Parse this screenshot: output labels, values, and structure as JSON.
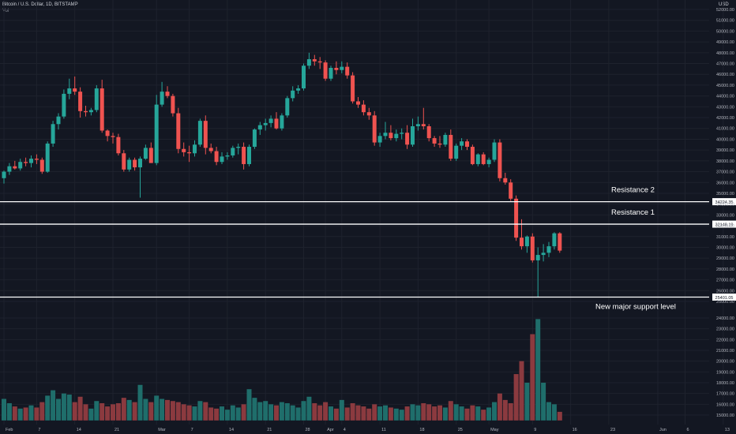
{
  "header": {
    "symbol_line": "Bitcoin / U.S. Dollar, 1D, BITSTAMP",
    "indicator": "Vol"
  },
  "colors": {
    "background": "#131722",
    "up": "#26a69a",
    "down": "#ef5350",
    "up_volume": "#1f6e6b",
    "down_volume": "#8b3a3f",
    "grid": "#1e222d",
    "axis_text": "#b2b5be",
    "level_line": "#ffffff"
  },
  "chart_data": {
    "type": "candlestick",
    "currency_label": "USD",
    "y_price_ticks": [
      "52000.00",
      "51000.00",
      "50000.00",
      "49000.00",
      "48000.00",
      "47000.00",
      "46000.00",
      "45000.00",
      "44000.00",
      "43000.00",
      "42000.00",
      "41000.00",
      "40000.00",
      "39000.00",
      "38000.00",
      "37000.00",
      "36000.00",
      "35000.00",
      "34000.00",
      "33000.00",
      "32000.00",
      "31000.00",
      "30000.00",
      "29000.00",
      "28000.00",
      "27000.00",
      "26000.00",
      "25000.00"
    ],
    "y_volume_ticks": [
      "24000.00",
      "23000.00",
      "22000.00",
      "21000.00",
      "20000.00",
      "19000.00",
      "18000.00",
      "17000.00",
      "16000.00",
      "15000.00"
    ],
    "x_labels": [
      {
        "label": "Feb",
        "day": 0
      },
      {
        "label": "7",
        "day": 6
      },
      {
        "label": "14",
        "day": 13
      },
      {
        "label": "21",
        "day": 20
      },
      {
        "label": "Mar",
        "day": 28
      },
      {
        "label": "7",
        "day": 34
      },
      {
        "label": "14",
        "day": 41
      },
      {
        "label": "21",
        "day": 48
      },
      {
        "label": "28",
        "day": 55
      },
      {
        "label": "Apr",
        "day": 59
      },
      {
        "label": "4",
        "day": 62
      },
      {
        "label": "11",
        "day": 69
      },
      {
        "label": "18",
        "day": 76
      },
      {
        "label": "25",
        "day": 83
      },
      {
        "label": "May",
        "day": 89
      },
      {
        "label": "9",
        "day": 97
      },
      {
        "label": "16",
        "day": 104
      },
      {
        "label": "23",
        "day": 111
      },
      {
        "label": "Jun",
        "day": 120
      },
      {
        "label": "6",
        "day": 125
      },
      {
        "label": "13",
        "day": 132
      }
    ],
    "horizontal_levels": [
      {
        "name": "Resistance 2",
        "price": 34224.35,
        "tag": "34224.35"
      },
      {
        "name": "Resistance 1",
        "price": 32148.19,
        "tag": "32148.19"
      },
      {
        "name": "New major support level",
        "price": 25401.05,
        "tag": "25401.05"
      }
    ],
    "candles": [
      {
        "o": 36400,
        "h": 37100,
        "l": 35900,
        "c": 37000,
        "v": 16500
      },
      {
        "o": 37000,
        "h": 37800,
        "l": 36700,
        "c": 37500,
        "v": 16100
      },
      {
        "o": 37500,
        "h": 38000,
        "l": 37200,
        "c": 37300,
        "v": 15800
      },
      {
        "o": 37300,
        "h": 38200,
        "l": 37100,
        "c": 37900,
        "v": 15600
      },
      {
        "o": 37900,
        "h": 38300,
        "l": 37500,
        "c": 37800,
        "v": 15700
      },
      {
        "o": 37800,
        "h": 38500,
        "l": 37400,
        "c": 38200,
        "v": 15900
      },
      {
        "o": 38200,
        "h": 38600,
        "l": 37700,
        "c": 38100,
        "v": 15700
      },
      {
        "o": 38100,
        "h": 38300,
        "l": 36800,
        "c": 37000,
        "v": 16200
      },
      {
        "o": 37000,
        "h": 39800,
        "l": 36900,
        "c": 39600,
        "v": 16800
      },
      {
        "o": 39600,
        "h": 41700,
        "l": 39300,
        "c": 41400,
        "v": 17300
      },
      {
        "o": 41400,
        "h": 42400,
        "l": 40900,
        "c": 42100,
        "v": 16500
      },
      {
        "o": 42100,
        "h": 44600,
        "l": 41900,
        "c": 44200,
        "v": 17000
      },
      {
        "o": 44200,
        "h": 45600,
        "l": 43700,
        "c": 44700,
        "v": 16900
      },
      {
        "o": 44700,
        "h": 45800,
        "l": 44100,
        "c": 44400,
        "v": 16200
      },
      {
        "o": 44400,
        "h": 44800,
        "l": 42000,
        "c": 42600,
        "v": 16700
      },
      {
        "o": 42600,
        "h": 43100,
        "l": 42100,
        "c": 42500,
        "v": 16000
      },
      {
        "o": 42500,
        "h": 42900,
        "l": 42200,
        "c": 42700,
        "v": 15600
      },
      {
        "o": 42700,
        "h": 45000,
        "l": 42500,
        "c": 44700,
        "v": 16300
      },
      {
        "o": 44700,
        "h": 45500,
        "l": 40600,
        "c": 40800,
        "v": 16100
      },
      {
        "o": 40800,
        "h": 40900,
        "l": 39800,
        "c": 40300,
        "v": 15800
      },
      {
        "o": 40300,
        "h": 40600,
        "l": 39600,
        "c": 40200,
        "v": 16000
      },
      {
        "o": 40200,
        "h": 40500,
        "l": 38500,
        "c": 38700,
        "v": 16100
      },
      {
        "o": 38700,
        "h": 39000,
        "l": 37000,
        "c": 37200,
        "v": 16600
      },
      {
        "o": 37200,
        "h": 38300,
        "l": 37000,
        "c": 38100,
        "v": 16400
      },
      {
        "o": 38100,
        "h": 38300,
        "l": 37100,
        "c": 37400,
        "v": 16200
      },
      {
        "o": 37400,
        "h": 38400,
        "l": 34600,
        "c": 38200,
        "v": 17800
      },
      {
        "o": 38200,
        "h": 39500,
        "l": 38100,
        "c": 39200,
        "v": 16500
      },
      {
        "o": 39200,
        "h": 39700,
        "l": 37800,
        "c": 37800,
        "v": 16200
      },
      {
        "o": 37800,
        "h": 44100,
        "l": 37600,
        "c": 43200,
        "v": 16800
      },
      {
        "o": 43200,
        "h": 45300,
        "l": 43000,
        "c": 44400,
        "v": 16500
      },
      {
        "o": 44400,
        "h": 44900,
        "l": 43800,
        "c": 44000,
        "v": 16400
      },
      {
        "o": 44000,
        "h": 44200,
        "l": 42100,
        "c": 42400,
        "v": 16300
      },
      {
        "o": 42400,
        "h": 42900,
        "l": 38700,
        "c": 39100,
        "v": 16200
      },
      {
        "o": 39100,
        "h": 39700,
        "l": 38400,
        "c": 38800,
        "v": 16000
      },
      {
        "o": 38800,
        "h": 39400,
        "l": 37900,
        "c": 38700,
        "v": 15900
      },
      {
        "o": 38700,
        "h": 39900,
        "l": 38400,
        "c": 39500,
        "v": 15800
      },
      {
        "o": 39500,
        "h": 41900,
        "l": 39300,
        "c": 41700,
        "v": 16300
      },
      {
        "o": 41700,
        "h": 42200,
        "l": 38600,
        "c": 39200,
        "v": 16200
      },
      {
        "o": 39200,
        "h": 39600,
        "l": 38700,
        "c": 38900,
        "v": 15700
      },
      {
        "o": 38900,
        "h": 39300,
        "l": 37600,
        "c": 37900,
        "v": 15600
      },
      {
        "o": 37900,
        "h": 38800,
        "l": 37700,
        "c": 38400,
        "v": 15800
      },
      {
        "o": 38400,
        "h": 38800,
        "l": 38100,
        "c": 38500,
        "v": 15500
      },
      {
        "o": 38500,
        "h": 39400,
        "l": 38300,
        "c": 39200,
        "v": 15900
      },
      {
        "o": 39200,
        "h": 39600,
        "l": 38600,
        "c": 39300,
        "v": 15700
      },
      {
        "o": 39300,
        "h": 39700,
        "l": 37200,
        "c": 37700,
        "v": 16000
      },
      {
        "o": 37700,
        "h": 39500,
        "l": 37500,
        "c": 39300,
        "v": 17400
      },
      {
        "o": 39300,
        "h": 41000,
        "l": 39100,
        "c": 40900,
        "v": 16600
      },
      {
        "o": 40900,
        "h": 41600,
        "l": 40400,
        "c": 41300,
        "v": 16200
      },
      {
        "o": 41300,
        "h": 41900,
        "l": 40800,
        "c": 41500,
        "v": 16300
      },
      {
        "o": 41500,
        "h": 42200,
        "l": 41100,
        "c": 41900,
        "v": 16000
      },
      {
        "o": 41900,
        "h": 42500,
        "l": 40900,
        "c": 41000,
        "v": 15900
      },
      {
        "o": 41000,
        "h": 42400,
        "l": 40800,
        "c": 42200,
        "v": 16200
      },
      {
        "o": 42200,
        "h": 44000,
        "l": 42000,
        "c": 43800,
        "v": 16100
      },
      {
        "o": 43800,
        "h": 44900,
        "l": 43500,
        "c": 44500,
        "v": 15900
      },
      {
        "o": 44500,
        "h": 45000,
        "l": 44200,
        "c": 44700,
        "v": 15700
      },
      {
        "o": 44700,
        "h": 47000,
        "l": 44500,
        "c": 46800,
        "v": 16300
      },
      {
        "o": 46800,
        "h": 48000,
        "l": 46500,
        "c": 47400,
        "v": 16700
      },
      {
        "o": 47400,
        "h": 47800,
        "l": 46800,
        "c": 47200,
        "v": 16100
      },
      {
        "o": 47200,
        "h": 47600,
        "l": 46500,
        "c": 47100,
        "v": 15900
      },
      {
        "o": 47100,
        "h": 47300,
        "l": 45400,
        "c": 45600,
        "v": 16200
      },
      {
        "o": 45600,
        "h": 46800,
        "l": 45400,
        "c": 46600,
        "v": 15800
      },
      {
        "o": 46600,
        "h": 47200,
        "l": 46000,
        "c": 46400,
        "v": 15600
      },
      {
        "o": 46400,
        "h": 47200,
        "l": 46100,
        "c": 46700,
        "v": 16400
      },
      {
        "o": 46700,
        "h": 47100,
        "l": 45600,
        "c": 45900,
        "v": 15700
      },
      {
        "o": 45900,
        "h": 46200,
        "l": 43300,
        "c": 43500,
        "v": 16100
      },
      {
        "o": 43500,
        "h": 43900,
        "l": 42900,
        "c": 43200,
        "v": 15900
      },
      {
        "o": 43200,
        "h": 43600,
        "l": 42200,
        "c": 42500,
        "v": 15800
      },
      {
        "o": 42500,
        "h": 42900,
        "l": 41800,
        "c": 42200,
        "v": 15600
      },
      {
        "o": 42200,
        "h": 42600,
        "l": 39400,
        "c": 39700,
        "v": 16000
      },
      {
        "o": 39700,
        "h": 40600,
        "l": 39300,
        "c": 40300,
        "v": 15800
      },
      {
        "o": 40300,
        "h": 41600,
        "l": 40000,
        "c": 40600,
        "v": 15900
      },
      {
        "o": 40600,
        "h": 41300,
        "l": 39900,
        "c": 40100,
        "v": 15700
      },
      {
        "o": 40100,
        "h": 40900,
        "l": 39800,
        "c": 40500,
        "v": 15600
      },
      {
        "o": 40500,
        "h": 41000,
        "l": 40000,
        "c": 40600,
        "v": 15500
      },
      {
        "o": 40600,
        "h": 41300,
        "l": 39100,
        "c": 39500,
        "v": 15800
      },
      {
        "o": 39500,
        "h": 41900,
        "l": 39300,
        "c": 41200,
        "v": 16000
      },
      {
        "o": 41200,
        "h": 42100,
        "l": 40800,
        "c": 41400,
        "v": 15900
      },
      {
        "o": 41400,
        "h": 42900,
        "l": 40900,
        "c": 41200,
        "v": 16100
      },
      {
        "o": 41200,
        "h": 41400,
        "l": 39800,
        "c": 40100,
        "v": 16000
      },
      {
        "o": 40100,
        "h": 40300,
        "l": 39300,
        "c": 39600,
        "v": 15800
      },
      {
        "o": 39600,
        "h": 40300,
        "l": 39200,
        "c": 39500,
        "v": 15900
      },
      {
        "o": 39500,
        "h": 40600,
        "l": 39300,
        "c": 40400,
        "v": 15700
      },
      {
        "o": 40400,
        "h": 40900,
        "l": 38000,
        "c": 38200,
        "v": 16300
      },
      {
        "o": 38200,
        "h": 39600,
        "l": 38000,
        "c": 39400,
        "v": 16000
      },
      {
        "o": 39400,
        "h": 40100,
        "l": 39000,
        "c": 39800,
        "v": 15800
      },
      {
        "o": 39800,
        "h": 40000,
        "l": 39000,
        "c": 39300,
        "v": 15600
      },
      {
        "o": 39300,
        "h": 39500,
        "l": 37600,
        "c": 37700,
        "v": 15900
      },
      {
        "o": 37700,
        "h": 38700,
        "l": 37500,
        "c": 38600,
        "v": 15800
      },
      {
        "o": 38600,
        "h": 38800,
        "l": 37600,
        "c": 37700,
        "v": 15500
      },
      {
        "o": 37700,
        "h": 38300,
        "l": 37400,
        "c": 38100,
        "v": 15700
      },
      {
        "o": 38100,
        "h": 40000,
        "l": 37900,
        "c": 39700,
        "v": 16200
      },
      {
        "o": 39700,
        "h": 40000,
        "l": 36100,
        "c": 36400,
        "v": 17000
      },
      {
        "o": 36400,
        "h": 36900,
        "l": 35800,
        "c": 36000,
        "v": 16400
      },
      {
        "o": 36000,
        "h": 36300,
        "l": 34300,
        "c": 34500,
        "v": 16100
      },
      {
        "o": 34500,
        "h": 34800,
        "l": 30600,
        "c": 30900,
        "v": 18800
      },
      {
        "o": 30900,
        "h": 32600,
        "l": 29800,
        "c": 30100,
        "v": 20000
      },
      {
        "o": 30100,
        "h": 31100,
        "l": 29500,
        "c": 31000,
        "v": 18000
      },
      {
        "o": 31000,
        "h": 31300,
        "l": 28600,
        "c": 28800,
        "v": 22500
      },
      {
        "o": 28800,
        "h": 30000,
        "l": 25400,
        "c": 29300,
        "v": 23900
      },
      {
        "o": 29300,
        "h": 30300,
        "l": 28700,
        "c": 29500,
        "v": 18000
      },
      {
        "o": 29500,
        "h": 30500,
        "l": 29100,
        "c": 30100,
        "v": 16200
      },
      {
        "o": 30100,
        "h": 31400,
        "l": 29800,
        "c": 31300,
        "v": 16000
      },
      {
        "o": 31300,
        "h": 31400,
        "l": 29500,
        "c": 29700,
        "v": 15300
      }
    ]
  }
}
